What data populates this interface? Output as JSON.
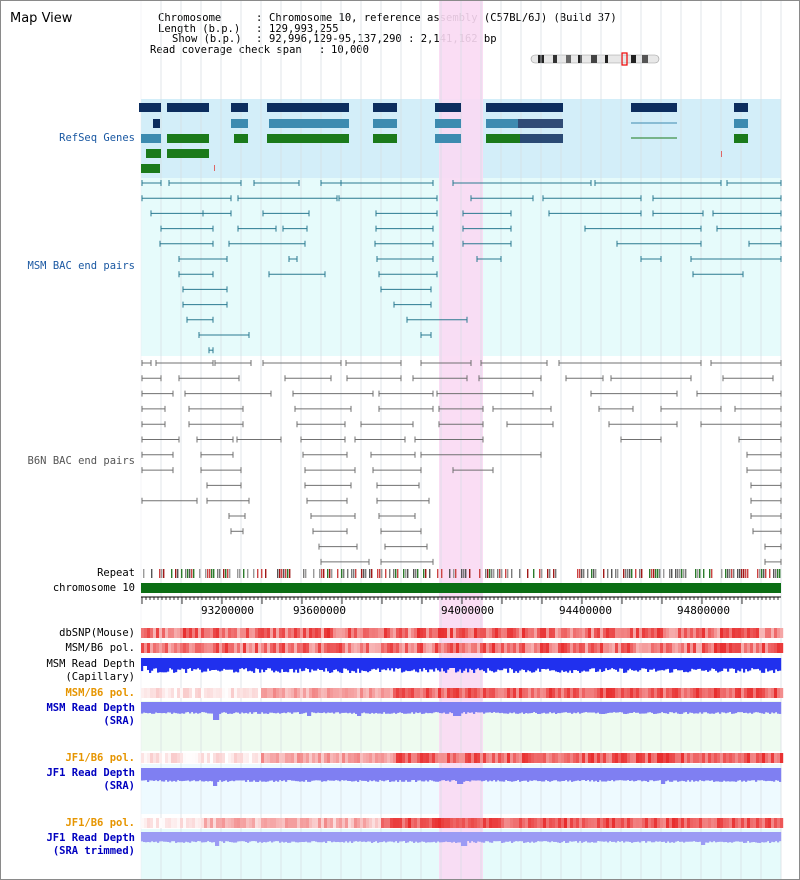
{
  "header": {
    "title": "Map View",
    "chromosome_label": "Chromosome",
    "chromosome_value": "Chromosome 10, reference assembly (C57BL/6J) (Build 37)",
    "length_label": "Length (b.p.)",
    "length_value": "129,993,255",
    "show_label": "Show (b.p.)",
    "show_value": "92,996,129-95,137,290 : 2,141,162 bp",
    "coverage_label": "Read coverage check span",
    "coverage_value": "10,000"
  },
  "tracks": {
    "refseq": "RefSeq Genes",
    "msm_bac": "MSM BAC end pairs",
    "b6n_bac": "B6N BAC end pairs",
    "repeat": "Repeat",
    "chromosome": "chromosome 10",
    "dbsnp": "dbSNP(Mouse)",
    "msm_b6_pol_1": "MSM/B6 pol.",
    "msm_depth_cap_1": "MSM Read Depth",
    "msm_depth_cap_2": "(Capillary)",
    "msm_b6_pol_2": "MSM/B6 pol.",
    "msm_depth_sra_1": "MSM Read Depth",
    "msm_depth_sra_2": "(SRA)",
    "jf1_b6_pol_1": "JF1/B6 pol.",
    "jf1_depth_sra_1": "JF1 Read Depth",
    "jf1_depth_sra_2": "(SRA)",
    "jf1_b6_pol_2": "JF1/B6 pol.",
    "jf1_depth_trim_1": "JF1 Read Depth",
    "jf1_depth_trim_2": "(SRA trimmed)"
  },
  "axis": {
    "ticks": [
      "93200000",
      "93600000",
      "94000000",
      "94400000",
      "94800000"
    ]
  },
  "colors": {
    "highlight": "#f9d9f3",
    "refseq_bg": "#d3eef9",
    "bac_bg": "#e6fbfb",
    "gene_dark": "#0c2d5e",
    "gene_mid": "#3d8bb0",
    "gene_green": "#1b7a1b",
    "msm_pair": "#2a7a90",
    "b6n_pair": "#707070",
    "chrom_bar": "#0b6e14",
    "depth_blue": "#2030ee",
    "depth_light": "#7f7ff2",
    "msm_label": "#1a58a2",
    "b6n_label": "#555555",
    "orange_label": "#e69500",
    "blue_label": "#0000c0"
  }
}
